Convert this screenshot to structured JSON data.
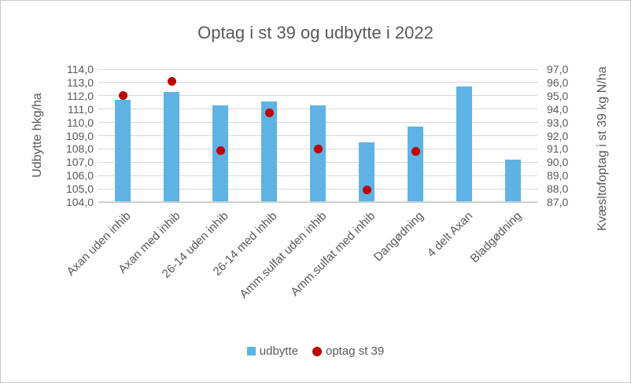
{
  "window": {
    "background": "#ffffff",
    "border_color": "#c8c8c8",
    "text_color": "#595959"
  },
  "chart_data": {
    "type": "bar",
    "subtype": "bar-with-scatter-overlay",
    "title": "Optag i st 39 og udbytte i 2022",
    "categories": [
      "Axan uden inhib",
      "Axan med inhib",
      "26-14 uden inhib",
      "26-14 med inhib",
      "Amm.sulfat uden inhib",
      "Amm.sulfat med inhib",
      "Dangødning",
      "4 delt Axan",
      "Bladgødning"
    ],
    "series": [
      {
        "name": "udbytte",
        "chart": "bar",
        "axis": "left",
        "color": "#5EB3E4",
        "values": [
          111.7,
          112.3,
          111.3,
          111.6,
          111.3,
          108.5,
          109.7,
          112.7,
          107.2
        ]
      },
      {
        "name": "optag st 39",
        "chart": "scatter",
        "axis": "right",
        "color": "#C00000",
        "values": [
          95.0,
          96.1,
          90.9,
          93.7,
          91.0,
          87.9,
          90.8,
          null,
          null
        ]
      }
    ],
    "left_axis": {
      "label": "Udbytte hkg/ha",
      "min": 104.0,
      "max": 114.0,
      "tick_step": 1.0,
      "ticks": [
        "114,0",
        "113,0",
        "112,0",
        "111,0",
        "110,0",
        "109,0",
        "108,0",
        "107,0",
        "106,0",
        "105,0",
        "104,0"
      ]
    },
    "right_axis": {
      "label": "Kvæsltofoptag i st 39 kg N/ha",
      "min": 87.0,
      "max": 97.0,
      "tick_step": 1.0,
      "ticks": [
        "97,0",
        "96,0",
        "95,0",
        "94,0",
        "93,0",
        "92,0",
        "91,0",
        "90,0",
        "89,0",
        "88,0",
        "87,0"
      ]
    },
    "grid": true,
    "gridline_color": "#d9d9d9",
    "legend_position": "bottom"
  }
}
